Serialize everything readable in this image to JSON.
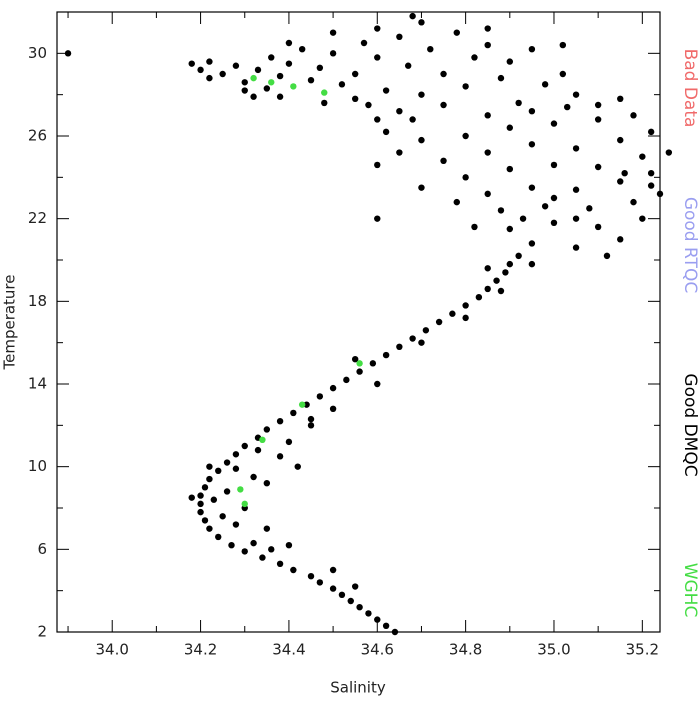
{
  "chart_data": {
    "type": "scatter",
    "x_label": "Salinity",
    "y_label": "Temperature",
    "xlim": [
      33.875,
      35.24
    ],
    "ylim": [
      2,
      32
    ],
    "xticks": [
      {
        "value": 34.0,
        "label": "34.0"
      },
      {
        "value": 34.2,
        "label": "34.2"
      },
      {
        "value": 34.4,
        "label": "34.4"
      },
      {
        "value": 34.6,
        "label": "34.6"
      },
      {
        "value": 34.8,
        "label": "34.8"
      },
      {
        "value": 35.0,
        "label": "35.0"
      },
      {
        "value": 35.2,
        "label": "35.2"
      }
    ],
    "x_minor_ticks": [
      33.9,
      34.1,
      34.3,
      34.5,
      34.7,
      34.9,
      35.1
    ],
    "yticks": [
      2,
      6,
      10,
      14,
      18,
      22,
      26,
      30
    ],
    "y_minor_ticks": [
      4,
      8,
      12,
      16,
      20,
      24,
      28
    ],
    "series": [
      {
        "name": "Bad Data",
        "color": "#f06a6a",
        "x": [],
        "values": []
      },
      {
        "name": "Good RTQC",
        "color": "#9a9ef0",
        "x": [],
        "values": []
      },
      {
        "name": "Good DMQC",
        "color": "#000000",
        "x": [
          34.64,
          34.62,
          34.6,
          34.58,
          34.56,
          34.54,
          34.52,
          34.5,
          34.47,
          34.45,
          34.41,
          34.38,
          34.34,
          34.3,
          34.27,
          34.24,
          34.22,
          34.21,
          34.2,
          34.2,
          34.2,
          34.21,
          34.22,
          34.24,
          34.26,
          34.28,
          34.3,
          34.33,
          34.35,
          34.38,
          34.41,
          34.44,
          34.47,
          34.5,
          34.53,
          34.56,
          34.59,
          34.62,
          34.65,
          34.68,
          34.71,
          34.74,
          34.77,
          34.8,
          34.83,
          34.85,
          34.87,
          34.89,
          34.9,
          34.92,
          34.32,
          34.36,
          34.28,
          34.3,
          34.26,
          34.32,
          34.38,
          34.35,
          34.4,
          34.45,
          34.45,
          34.25,
          34.23,
          34.35,
          34.4,
          34.5,
          34.55,
          34.28,
          34.42,
          34.33,
          34.22,
          34.18,
          34.5,
          34.6,
          34.55,
          34.7,
          34.8,
          34.88,
          34.85,
          34.95,
          34.95,
          35.05,
          35.15,
          34.9,
          35.0,
          35.1,
          35.2,
          34.88,
          34.98,
          35.08,
          35.18,
          35.24,
          34.85,
          34.95,
          35.05,
          35.15,
          35.22,
          34.8,
          34.9,
          35.0,
          35.1,
          35.2,
          35.26,
          34.75,
          34.85,
          34.95,
          35.05,
          35.15,
          35.22,
          34.7,
          34.8,
          34.9,
          35.0,
          35.1,
          35.18,
          34.62,
          34.68,
          34.6,
          34.65,
          34.7,
          34.78,
          34.82,
          34.6,
          35.12,
          35.22,
          35.16,
          35.0,
          34.93,
          35.05,
          35.03,
          34.95,
          34.85,
          34.18,
          34.2,
          34.22,
          34.25,
          34.28,
          34.3,
          34.33,
          34.36,
          34.38,
          34.4,
          34.43,
          34.45,
          34.47,
          34.5,
          34.52,
          34.55,
          34.57,
          34.6,
          34.62,
          34.65,
          34.67,
          34.7,
          34.72,
          34.75,
          34.78,
          34.8,
          34.82,
          34.85,
          34.88,
          34.9,
          34.92,
          34.98,
          35.02,
          35.05,
          35.1,
          35.15,
          34.3,
          34.22,
          34.4,
          34.5,
          34.6,
          34.7,
          34.68,
          34.55,
          34.6,
          34.58,
          34.38,
          34.48,
          34.65,
          34.75,
          34.85,
          34.95,
          35.02,
          34.35,
          33.9,
          34.32
        ],
        "values": [
          2.0,
          2.3,
          2.6,
          2.9,
          3.2,
          3.5,
          3.8,
          4.1,
          4.4,
          4.7,
          5.0,
          5.3,
          5.6,
          5.9,
          6.2,
          6.6,
          7.0,
          7.4,
          7.8,
          8.2,
          8.6,
          9.0,
          9.4,
          9.8,
          10.2,
          10.6,
          11.0,
          11.4,
          11.8,
          12.2,
          12.6,
          13.0,
          13.4,
          13.8,
          14.2,
          14.6,
          15.0,
          15.4,
          15.8,
          16.2,
          16.6,
          17.0,
          17.4,
          17.8,
          18.2,
          18.6,
          19.0,
          19.4,
          19.8,
          20.2,
          6.3,
          6.0,
          7.2,
          8.0,
          8.8,
          9.5,
          10.5,
          9.2,
          11.2,
          12.0,
          12.3,
          7.6,
          8.4,
          7.0,
          6.2,
          5.0,
          4.2,
          9.9,
          10.0,
          10.8,
          10.0,
          8.5,
          12.8,
          14.0,
          15.2,
          16.0,
          17.2,
          18.5,
          19.6,
          19.8,
          20.8,
          20.6,
          21.0,
          21.5,
          21.8,
          21.6,
          22.0,
          22.4,
          22.6,
          22.5,
          22.8,
          23.2,
          23.2,
          23.5,
          23.4,
          23.8,
          24.2,
          24.0,
          24.4,
          24.6,
          24.5,
          25.0,
          25.2,
          24.8,
          25.2,
          25.6,
          25.4,
          25.8,
          26.2,
          25.8,
          26.0,
          26.4,
          26.6,
          26.8,
          27.0,
          26.2,
          26.8,
          24.6,
          25.2,
          23.5,
          22.8,
          21.6,
          22.0,
          20.2,
          23.6,
          24.2,
          23.0,
          22.0,
          22.0,
          27.4,
          27.2,
          27.0,
          29.5,
          29.2,
          29.6,
          29.0,
          29.4,
          28.6,
          29.2,
          29.8,
          28.9,
          29.5,
          30.2,
          28.7,
          29.3,
          30.0,
          28.5,
          29.0,
          30.5,
          29.8,
          28.2,
          30.8,
          29.4,
          28.0,
          30.2,
          29.0,
          31.0,
          28.4,
          29.8,
          30.4,
          28.8,
          29.6,
          27.6,
          28.5,
          29.0,
          28.0,
          27.5,
          27.8,
          28.2,
          28.8,
          30.5,
          31.0,
          31.2,
          31.5,
          31.8,
          27.8,
          26.8,
          27.5,
          27.9,
          27.6,
          27.2,
          27.5,
          31.2,
          30.2,
          30.4,
          28.3,
          30.0,
          27.9
        ]
      },
      {
        "name": "WGHC",
        "color": "#44dd44",
        "x": [
          34.32,
          34.36,
          34.41,
          34.48,
          34.34,
          34.29,
          34.3,
          34.43,
          34.56
        ],
        "values": [
          28.8,
          28.6,
          28.4,
          28.1,
          11.3,
          8.9,
          8.2,
          13.0,
          15.0
        ]
      }
    ]
  }
}
